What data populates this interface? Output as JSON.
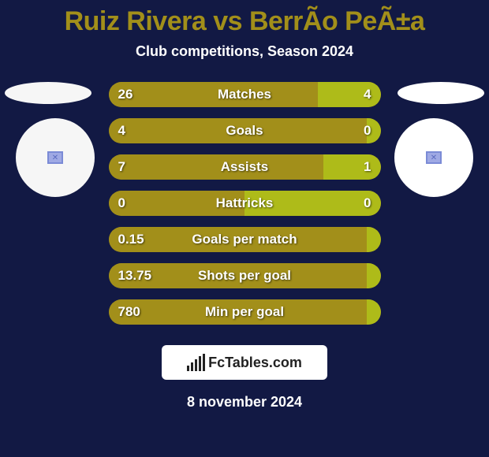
{
  "title": "Ruiz Rivera vs BerrÃo PeÃ±a",
  "subtitle": "Club competitions, Season 2024",
  "date": "8 november 2024",
  "logo_text": "FcTables.com",
  "colors": {
    "background": "#121944",
    "left_team": "#f6f6f6",
    "right_team": "#ffffff",
    "bar_left": "#a28f1a",
    "bar_right": "#aebb19",
    "text": "#ffffff"
  },
  "sides": {
    "left_oval_color": "#f6f6f6",
    "right_oval_color": "#ffffff",
    "left_circle_color": "#f6f6f6",
    "right_circle_color": "#ffffff"
  },
  "rows": [
    {
      "label": "Matches",
      "left_val": "26",
      "right_val": "4",
      "left_pct": 77,
      "right_pct": 23
    },
    {
      "label": "Goals",
      "left_val": "4",
      "right_val": "0",
      "left_pct": 95,
      "right_pct": 5
    },
    {
      "label": "Assists",
      "left_val": "7",
      "right_val": "1",
      "left_pct": 79,
      "right_pct": 21
    },
    {
      "label": "Hattricks",
      "left_val": "0",
      "right_val": "0",
      "left_pct": 50,
      "right_pct": 50
    },
    {
      "label": "Goals per match",
      "left_val": "0.15",
      "right_val": "",
      "left_pct": 95,
      "right_pct": 5
    },
    {
      "label": "Shots per goal",
      "left_val": "13.75",
      "right_val": "",
      "left_pct": 95,
      "right_pct": 5
    },
    {
      "label": "Min per goal",
      "left_val": "780",
      "right_val": "",
      "left_pct": 95,
      "right_pct": 5
    }
  ]
}
